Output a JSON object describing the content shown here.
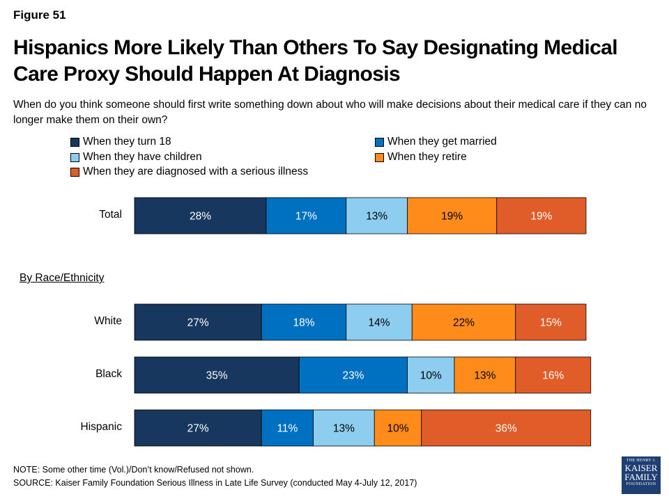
{
  "figure_label": "Figure 51",
  "title": "Hispanics More Likely Than Others To Say Designating Medical Care Proxy Should Happen At Diagnosis",
  "subtitle": "When do you think someone should first write something down about who will make decisions about their medical care if they can no longer make them on their own?",
  "group_label": "By Race/Ethnicity",
  "note": "NOTE: Some other time (Vol.)/Don’t know/Refused not shown.",
  "source": "SOURCE: Kaiser Family Foundation Serious Illness in Late Life Survey (conducted May 4-July 12, 2017)",
  "logo": {
    "line1": "THE HENRY J.",
    "line2": "KAISER",
    "line3": "FAMILY",
    "line4": "FOUNDATION"
  },
  "chart_data": {
    "type": "bar",
    "orientation": "horizontal",
    "stacked": true,
    "categories": [
      "Total",
      "White",
      "Black",
      "Hispanic"
    ],
    "series": [
      {
        "name": "When they turn 18",
        "color": "#17375e",
        "values": [
          28,
          27,
          35,
          27
        ]
      },
      {
        "name": "When they get married",
        "color": "#0070c0",
        "values": [
          17,
          18,
          23,
          11
        ]
      },
      {
        "name": "When they have children",
        "color": "#8dcdf0",
        "values": [
          13,
          14,
          10,
          13
        ]
      },
      {
        "name": "When they retire",
        "color": "#ff8c1a",
        "values": [
          19,
          22,
          13,
          10
        ]
      },
      {
        "name": "When they are diagnosed with a serious illness",
        "color": "#e05c28",
        "values": [
          19,
          15,
          16,
          36
        ]
      }
    ],
    "data_labels": [
      [
        "28%",
        "17%",
        "13%",
        "19%",
        "19%"
      ],
      [
        "27%",
        "18%",
        "14%",
        "22%",
        "15%"
      ],
      [
        "35%",
        "23%",
        "10%",
        "13%",
        "16%"
      ],
      [
        "27%",
        "11%",
        "13%",
        "10%",
        "36%"
      ]
    ],
    "label_colors": [
      "#ffffff",
      "#ffffff",
      "#000000",
      "#000000",
      "#ffffff"
    ],
    "xlim": [
      0,
      100
    ],
    "grid": false,
    "legend_position": "top"
  }
}
